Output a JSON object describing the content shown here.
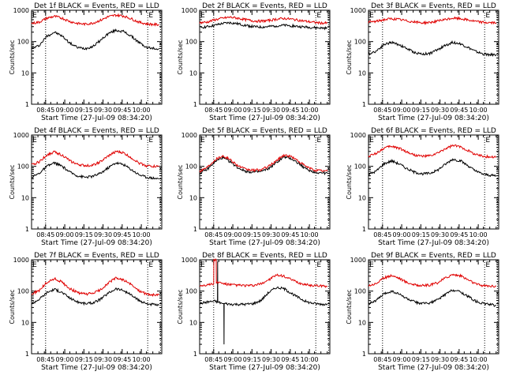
{
  "colors": {
    "events": "#000000",
    "lld": "#e00000",
    "frame": "#000000",
    "background": "#ffffff"
  },
  "common": {
    "xlabel": "Start Time (27-Jul-09 08:34:20)",
    "ylabel": "Counts/sec",
    "x_tick_labels": [
      "08:45",
      "09:00",
      "09:15",
      "09:30",
      "09:45",
      "10:00"
    ],
    "y_tick_labels": [
      "1",
      "10",
      "100",
      "1000"
    ],
    "flag_label": "E"
  },
  "chart_data": [
    {
      "type": "line",
      "title": "Det 1f BLACK = Events, RED = LLD",
      "xlabel": "Start Time (27-Jul-09 08:34:20)",
      "ylabel": "Counts/sec",
      "x_unit": "minutes after 08:34:20",
      "xlim": [
        0,
        102
      ],
      "ylim": [
        1,
        1000
      ],
      "y_scale": "log",
      "x_ticks": [
        "08:45",
        "09:00",
        "09:15",
        "09:30",
        "09:45",
        "10:00"
      ],
      "vlines": [
        11,
        91,
        101
      ],
      "series": [
        {
          "name": "Events",
          "color": "#000000",
          "x": [
            0,
            6,
            12,
            18,
            24,
            30,
            36,
            42,
            48,
            54,
            60,
            66,
            72,
            78,
            84,
            90,
            96,
            100
          ],
          "values": [
            60,
            75,
            150,
            200,
            150,
            90,
            65,
            60,
            70,
            110,
            180,
            230,
            210,
            150,
            95,
            65,
            60,
            60
          ]
        },
        {
          "name": "LLD",
          "color": "#e00000",
          "x": [
            0,
            6,
            12,
            18,
            24,
            30,
            36,
            42,
            48,
            54,
            60,
            66,
            72,
            78,
            84,
            90,
            96,
            100
          ],
          "values": [
            380,
            420,
            560,
            640,
            560,
            440,
            380,
            360,
            390,
            480,
            620,
            700,
            660,
            540,
            420,
            370,
            350,
            350
          ]
        }
      ]
    },
    {
      "type": "line",
      "title": "Det 2f BLACK = Events, RED = LLD",
      "xlabel": "Start Time (27-Jul-09 08:34:20)",
      "ylabel": "Counts/sec",
      "x_unit": "minutes after 08:34:20",
      "xlim": [
        0,
        102
      ],
      "ylim": [
        1,
        1000
      ],
      "y_scale": "log",
      "x_ticks": [
        "08:45",
        "09:00",
        "09:15",
        "09:30",
        "09:45",
        "10:00"
      ],
      "vlines": [
        11,
        91,
        101
      ],
      "series": [
        {
          "name": "Events",
          "color": "#000000",
          "x": [
            0,
            6,
            12,
            18,
            24,
            30,
            36,
            42,
            48,
            54,
            60,
            66,
            72,
            78,
            84,
            90,
            96,
            100
          ],
          "values": [
            280,
            300,
            330,
            380,
            400,
            370,
            330,
            300,
            290,
            300,
            320,
            330,
            320,
            300,
            290,
            280,
            270,
            270
          ]
        },
        {
          "name": "LLD",
          "color": "#e00000",
          "x": [
            0,
            6,
            12,
            18,
            24,
            30,
            36,
            42,
            48,
            54,
            60,
            66,
            72,
            78,
            84,
            90,
            96,
            100
          ],
          "values": [
            400,
            420,
            500,
            560,
            600,
            560,
            500,
            460,
            450,
            470,
            520,
            550,
            520,
            480,
            440,
            410,
            390,
            390
          ]
        }
      ]
    },
    {
      "type": "line",
      "title": "Det 3f BLACK = Events, RED = LLD",
      "xlabel": "Start Time (27-Jul-09 08:34:20)",
      "ylabel": "Counts/sec",
      "x_unit": "minutes after 08:34:20",
      "xlim": [
        0,
        102
      ],
      "ylim": [
        1,
        1000
      ],
      "y_scale": "log",
      "x_ticks": [
        "08:45",
        "09:00",
        "09:15",
        "09:30",
        "09:45",
        "10:00"
      ],
      "vlines": [
        11,
        91,
        101
      ],
      "series": [
        {
          "name": "Events",
          "color": "#000000",
          "x": [
            0,
            6,
            12,
            18,
            24,
            30,
            36,
            42,
            48,
            54,
            60,
            66,
            72,
            78,
            84,
            90,
            96,
            100
          ],
          "values": [
            40,
            50,
            80,
            95,
            80,
            60,
            45,
            40,
            42,
            55,
            75,
            95,
            85,
            65,
            48,
            40,
            38,
            38
          ]
        },
        {
          "name": "LLD",
          "color": "#e00000",
          "x": [
            0,
            6,
            12,
            18,
            24,
            30,
            36,
            42,
            48,
            54,
            60,
            66,
            72,
            78,
            84,
            90,
            96,
            100
          ],
          "values": [
            420,
            440,
            500,
            540,
            510,
            460,
            420,
            400,
            410,
            450,
            500,
            560,
            540,
            490,
            440,
            410,
            400,
            400
          ]
        }
      ]
    },
    {
      "type": "line",
      "title": "Det 4f BLACK = Events, RED = LLD",
      "xlabel": "Start Time (27-Jul-09 08:34:20)",
      "ylabel": "Counts/sec",
      "x_unit": "minutes after 08:34:20",
      "xlim": [
        0,
        102
      ],
      "ylim": [
        1,
        1000
      ],
      "y_scale": "log",
      "x_ticks": [
        "08:45",
        "09:00",
        "09:15",
        "09:30",
        "09:45",
        "10:00"
      ],
      "vlines": [
        11,
        91,
        101
      ],
      "series": [
        {
          "name": "Events",
          "color": "#000000",
          "x": [
            0,
            6,
            12,
            18,
            24,
            30,
            36,
            42,
            48,
            54,
            60,
            66,
            72,
            78,
            84,
            90,
            96,
            100
          ],
          "values": [
            45,
            60,
            100,
            130,
            100,
            65,
            50,
            45,
            48,
            60,
            90,
            130,
            115,
            80,
            55,
            45,
            42,
            40
          ]
        },
        {
          "name": "LLD",
          "color": "#e00000",
          "x": [
            0,
            6,
            12,
            18,
            24,
            30,
            36,
            42,
            48,
            54,
            60,
            66,
            72,
            78,
            84,
            90,
            96,
            100
          ],
          "values": [
            110,
            140,
            230,
            290,
            230,
            150,
            115,
            105,
            110,
            140,
            210,
            300,
            270,
            190,
            130,
            105,
            100,
            100
          ]
        }
      ]
    },
    {
      "type": "line",
      "title": "Det 5f BLACK = Events, RED = LLD",
      "xlabel": "Start Time (27-Jul-09 08:34:20)",
      "ylabel": "Counts/sec",
      "x_unit": "minutes after 08:34:20",
      "xlim": [
        0,
        102
      ],
      "ylim": [
        1,
        1000
      ],
      "y_scale": "log",
      "x_ticks": [
        "08:45",
        "09:00",
        "09:15",
        "09:30",
        "09:45",
        "10:00"
      ],
      "vlines": [
        11,
        91,
        101
      ],
      "series": [
        {
          "name": "Events",
          "color": "#000000",
          "x": [
            0,
            6,
            12,
            18,
            24,
            30,
            36,
            42,
            48,
            54,
            60,
            66,
            72,
            78,
            84,
            90,
            96,
            100
          ],
          "values": [
            60,
            80,
            140,
            190,
            140,
            90,
            70,
            65,
            68,
            85,
            130,
            200,
            175,
            120,
            80,
            65,
            62,
            60
          ]
        },
        {
          "name": "LLD",
          "color": "#e00000",
          "x": [
            0,
            6,
            12,
            18,
            24,
            30,
            36,
            42,
            48,
            54,
            60,
            66,
            72,
            78,
            84,
            90,
            96,
            100
          ],
          "values": [
            70,
            95,
            165,
            220,
            165,
            105,
            80,
            75,
            78,
            100,
            150,
            230,
            205,
            140,
            95,
            76,
            72,
            70
          ]
        }
      ]
    },
    {
      "type": "line",
      "title": "Det 6f BLACK = Events, RED = LLD",
      "xlabel": "Start Time (27-Jul-09 08:34:20)",
      "ylabel": "Counts/sec",
      "x_unit": "minutes after 08:34:20",
      "xlim": [
        0,
        102
      ],
      "ylim": [
        1,
        1000
      ],
      "y_scale": "log",
      "x_ticks": [
        "08:45",
        "09:00",
        "09:15",
        "09:30",
        "09:45",
        "10:00"
      ],
      "vlines": [
        11,
        91,
        101
      ],
      "series": [
        {
          "name": "Events",
          "color": "#000000",
          "x": [
            0,
            6,
            12,
            18,
            24,
            30,
            36,
            42,
            48,
            54,
            60,
            66,
            72,
            78,
            84,
            90,
            96,
            100
          ],
          "values": [
            55,
            70,
            120,
            150,
            120,
            85,
            65,
            58,
            60,
            75,
            115,
            170,
            150,
            105,
            70,
            56,
            52,
            50
          ]
        },
        {
          "name": "LLD",
          "color": "#e00000",
          "x": [
            0,
            6,
            12,
            18,
            24,
            30,
            36,
            42,
            48,
            54,
            60,
            66,
            72,
            78,
            84,
            90,
            96,
            100
          ],
          "values": [
            210,
            260,
            380,
            440,
            380,
            290,
            230,
            210,
            215,
            260,
            360,
            460,
            420,
            320,
            240,
            210,
            200,
            200
          ]
        }
      ]
    },
    {
      "type": "line",
      "title": "Det 7f BLACK = Events, RED = LLD",
      "xlabel": "Start Time (27-Jul-09 08:34:20)",
      "ylabel": "Counts/sec",
      "x_unit": "minutes after 08:34:20",
      "xlim": [
        0,
        102
      ],
      "ylim": [
        1,
        1000
      ],
      "y_scale": "log",
      "x_ticks": [
        "08:45",
        "09:00",
        "09:15",
        "09:30",
        "09:45",
        "10:00"
      ],
      "vlines": [
        11,
        91,
        101
      ],
      "series": [
        {
          "name": "Events",
          "color": "#000000",
          "x": [
            0,
            6,
            12,
            18,
            24,
            30,
            36,
            42,
            48,
            54,
            60,
            66,
            72,
            78,
            84,
            90,
            96,
            100
          ],
          "values": [
            40,
            55,
            90,
            115,
            90,
            60,
            45,
            40,
            42,
            55,
            85,
            120,
            105,
            75,
            50,
            40,
            37,
            35
          ]
        },
        {
          "name": "LLD",
          "color": "#e00000",
          "x": [
            0,
            6,
            12,
            18,
            24,
            30,
            36,
            42,
            48,
            54,
            60,
            66,
            72,
            78,
            84,
            90,
            96,
            100
          ],
          "values": [
            80,
            105,
            190,
            250,
            190,
            120,
            90,
            80,
            85,
            110,
            180,
            260,
            230,
            160,
            105,
            80,
            75,
            75
          ]
        }
      ]
    },
    {
      "type": "line",
      "title": "Det 8f BLACK = Events, RED = LLD",
      "xlabel": "Start Time (27-Jul-09 08:34:20)",
      "ylabel": "Counts/sec",
      "x_unit": "minutes after 08:34:20",
      "xlim": [
        0,
        102
      ],
      "ylim": [
        1,
        1000
      ],
      "y_scale": "log",
      "x_ticks": [
        "08:45",
        "09:00",
        "09:15",
        "09:30",
        "09:45",
        "10:00"
      ],
      "vlines": [
        11,
        91,
        101
      ],
      "series": [
        {
          "name": "Events",
          "color": "#000000",
          "x": [
            0,
            6,
            12,
            14,
            14.1,
            14.2,
            18,
            19,
            19.1,
            19.2,
            20,
            24,
            30,
            36,
            42,
            48,
            54,
            60,
            66,
            72,
            78,
            84,
            90,
            96,
            100
          ],
          "values": [
            40,
            45,
            48,
            45,
            900,
            45,
            40,
            40,
            2,
            40,
            40,
            38,
            38,
            38,
            40,
            50,
            90,
            130,
            120,
            85,
            60,
            45,
            40,
            38,
            38
          ]
        },
        {
          "name": "LLD",
          "color": "#e00000",
          "x": [
            0,
            6,
            11,
            11.1,
            13,
            13.1,
            14,
            20,
            24,
            30,
            36,
            42,
            48,
            54,
            60,
            66,
            72,
            78,
            84,
            90,
            96,
            100
          ],
          "values": [
            150,
            160,
            170,
            1000,
            1000,
            180,
            190,
            170,
            160,
            155,
            150,
            150,
            170,
            230,
            320,
            300,
            230,
            180,
            160,
            150,
            145,
            145
          ]
        }
      ]
    },
    {
      "type": "line",
      "title": "Det 9f BLACK = Events, RED = LLD",
      "xlabel": "Start Time (27-Jul-09 08:34:20)",
      "ylabel": "Counts/sec",
      "x_unit": "minutes after 08:34:20",
      "xlim": [
        0,
        102
      ],
      "ylim": [
        1,
        1000
      ],
      "y_scale": "log",
      "x_ticks": [
        "08:45",
        "09:00",
        "09:15",
        "09:30",
        "09:45",
        "10:00"
      ],
      "vlines": [
        11,
        91,
        101
      ],
      "series": [
        {
          "name": "Events",
          "color": "#000000",
          "x": [
            0,
            6,
            12,
            18,
            24,
            30,
            36,
            42,
            48,
            54,
            60,
            66,
            72,
            78,
            84,
            90,
            96,
            100
          ],
          "values": [
            40,
            50,
            80,
            100,
            80,
            58,
            45,
            40,
            42,
            52,
            78,
            110,
            95,
            68,
            48,
            40,
            37,
            35
          ]
        },
        {
          "name": "LLD",
          "color": "#e00000",
          "x": [
            0,
            6,
            12,
            18,
            24,
            30,
            36,
            42,
            48,
            54,
            60,
            66,
            72,
            78,
            84,
            90,
            96,
            100
          ],
          "values": [
            150,
            175,
            260,
            320,
            260,
            190,
            160,
            150,
            155,
            185,
            260,
            340,
            310,
            230,
            170,
            150,
            145,
            145
          ]
        }
      ]
    }
  ]
}
